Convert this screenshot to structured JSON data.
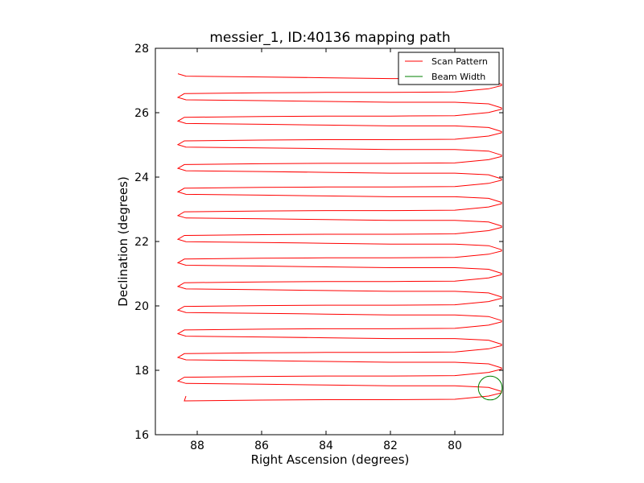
{
  "chart_data": {
    "type": "line",
    "title": "messier_1, ID:40136 mapping path",
    "xlabel": "Right Ascension (degrees)",
    "ylabel": "Declination (degrees)",
    "xlim": [
      89.3,
      78.5
    ],
    "ylim": [
      16,
      28
    ],
    "x_ticks": [
      88,
      86,
      84,
      82,
      80
    ],
    "x_tick_labels": [
      "88",
      "86",
      "84",
      "82",
      "80"
    ],
    "y_ticks": [
      16,
      18,
      20,
      22,
      24,
      26,
      28
    ],
    "y_tick_labels": [
      "16",
      "18",
      "20",
      "22",
      "24",
      "26",
      "28"
    ],
    "grid": false,
    "legend_position": "top-right",
    "colors": {
      "scan": "#ff0000",
      "beam": "#008000",
      "beam_edge": "#ff0000"
    },
    "series": [
      {
        "name": "Scan Pattern",
        "pattern": "raster",
        "dec_start": 17.05,
        "dec_end": 26.95,
        "row_spacing": 0.367,
        "ra_west": 78.55,
        "ra_east": 88.6
      },
      {
        "name": "Beam Width",
        "center": [
          78.9,
          17.45
        ],
        "radius_deg": 0.37
      }
    ]
  }
}
